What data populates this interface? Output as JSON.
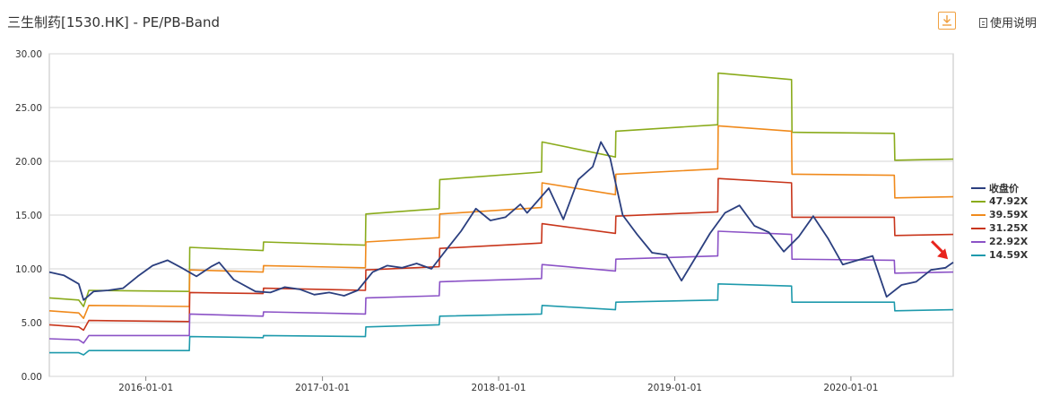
{
  "header": {
    "title": "三生制药[1530.HK] - PE/PB-Band",
    "help_label": "使用说明"
  },
  "colors": {
    "close": "#2b3f7f",
    "band_1": "#8aab1b",
    "band_2": "#f08a1c",
    "band_3": "#c8351b",
    "band_4": "#8b52c6",
    "band_5": "#1e9aac",
    "marker": "#e8231c",
    "grid": "#d4d4d4",
    "download": "#f0a040"
  },
  "chart_data": {
    "type": "line",
    "ylim": [
      0,
      30
    ],
    "yticks": [
      "0.00",
      "5.00",
      "10.00",
      "15.00",
      "20.00",
      "25.00",
      "30.00"
    ],
    "xticks": [
      "2016-01-01",
      "2017-01-01",
      "2018-01-01",
      "2019-01-01",
      "2020-01-01"
    ],
    "x_range": [
      "2015-06-15",
      "2020-07-31"
    ],
    "grid": true,
    "legend_position": "right",
    "series": [
      {
        "name": "收盘价",
        "points": [
          [
            "2015-06-15",
            9.7
          ],
          [
            "2015-07-15",
            9.4
          ],
          [
            "2015-08-15",
            8.6
          ],
          [
            "2015-08-25",
            7.1
          ],
          [
            "2015-09-15",
            7.9
          ],
          [
            "2015-10-15",
            8.0
          ],
          [
            "2015-11-15",
            8.2
          ],
          [
            "2015-12-15",
            9.3
          ],
          [
            "2016-01-15",
            10.3
          ],
          [
            "2016-02-15",
            10.8
          ],
          [
            "2016-03-15",
            10.1
          ],
          [
            "2016-04-15",
            9.3
          ],
          [
            "2016-05-15",
            10.2
          ],
          [
            "2016-06-01",
            10.6
          ],
          [
            "2016-07-01",
            9.0
          ],
          [
            "2016-08-15",
            7.9
          ],
          [
            "2016-09-15",
            7.8
          ],
          [
            "2016-10-15",
            8.3
          ],
          [
            "2016-11-15",
            8.1
          ],
          [
            "2016-12-15",
            7.6
          ],
          [
            "2017-01-15",
            7.8
          ],
          [
            "2017-02-15",
            7.5
          ],
          [
            "2017-03-15",
            8.0
          ],
          [
            "2017-04-15",
            9.7
          ],
          [
            "2017-05-15",
            10.3
          ],
          [
            "2017-06-15",
            10.1
          ],
          [
            "2017-07-15",
            10.5
          ],
          [
            "2017-08-15",
            10.0
          ],
          [
            "2017-09-15",
            11.8
          ],
          [
            "2017-10-15",
            13.5
          ],
          [
            "2017-11-15",
            15.6
          ],
          [
            "2017-12-15",
            14.5
          ],
          [
            "2018-01-15",
            14.8
          ],
          [
            "2018-02-15",
            16.0
          ],
          [
            "2018-03-01",
            15.2
          ],
          [
            "2018-04-15",
            17.5
          ],
          [
            "2018-05-15",
            14.6
          ],
          [
            "2018-06-15",
            18.3
          ],
          [
            "2018-07-15",
            19.5
          ],
          [
            "2018-08-01",
            21.8
          ],
          [
            "2018-08-20",
            20.3
          ],
          [
            "2018-09-15",
            15.0
          ],
          [
            "2018-10-15",
            13.2
          ],
          [
            "2018-11-15",
            11.5
          ],
          [
            "2018-12-15",
            11.3
          ],
          [
            "2019-01-15",
            8.9
          ],
          [
            "2019-02-15",
            11.2
          ],
          [
            "2019-03-15",
            13.3
          ],
          [
            "2019-04-15",
            15.2
          ],
          [
            "2019-05-15",
            15.9
          ],
          [
            "2019-06-15",
            14.0
          ],
          [
            "2019-07-15",
            13.4
          ],
          [
            "2019-08-15",
            11.6
          ],
          [
            "2019-09-15",
            13.0
          ],
          [
            "2019-10-15",
            14.9
          ],
          [
            "2019-11-15",
            12.8
          ],
          [
            "2019-12-15",
            10.4
          ],
          [
            "2020-01-15",
            10.8
          ],
          [
            "2020-02-15",
            11.2
          ],
          [
            "2020-03-15",
            7.4
          ],
          [
            "2020-04-15",
            8.5
          ],
          [
            "2020-05-15",
            8.8
          ],
          [
            "2020-06-15",
            9.9
          ],
          [
            "2020-07-15",
            10.1
          ],
          [
            "2020-07-31",
            10.6
          ]
        ]
      },
      {
        "name": "47.92X",
        "points": [
          [
            "2015-06-15",
            7.3
          ],
          [
            "2015-08-15",
            7.1
          ],
          [
            "2015-08-25",
            6.5
          ],
          [
            "2015-09-05",
            8.0
          ],
          [
            "2016-03-31",
            7.9
          ],
          [
            "2016-04-01",
            12.0
          ],
          [
            "2016-08-31",
            11.7
          ],
          [
            "2016-09-01",
            12.5
          ],
          [
            "2017-03-31",
            12.2
          ],
          [
            "2017-04-01",
            15.1
          ],
          [
            "2017-08-31",
            15.6
          ],
          [
            "2017-09-01",
            18.3
          ],
          [
            "2018-03-31",
            19.0
          ],
          [
            "2018-04-01",
            21.8
          ],
          [
            "2018-08-31",
            20.4
          ],
          [
            "2018-09-01",
            22.8
          ],
          [
            "2019-03-31",
            23.4
          ],
          [
            "2019-04-01",
            28.2
          ],
          [
            "2019-08-31",
            27.6
          ],
          [
            "2019-09-01",
            22.7
          ],
          [
            "2020-03-31",
            22.6
          ],
          [
            "2020-04-01",
            20.1
          ],
          [
            "2020-07-31",
            20.2
          ]
        ]
      },
      {
        "name": "39.59X",
        "points": [
          [
            "2015-06-15",
            6.1
          ],
          [
            "2015-08-15",
            5.9
          ],
          [
            "2015-08-25",
            5.4
          ],
          [
            "2015-09-05",
            6.6
          ],
          [
            "2016-03-31",
            6.5
          ],
          [
            "2016-04-01",
            9.9
          ],
          [
            "2016-08-31",
            9.7
          ],
          [
            "2016-09-01",
            10.3
          ],
          [
            "2017-03-31",
            10.1
          ],
          [
            "2017-04-01",
            12.5
          ],
          [
            "2017-08-31",
            12.9
          ],
          [
            "2017-09-01",
            15.1
          ],
          [
            "2018-03-31",
            15.7
          ],
          [
            "2018-04-01",
            18.0
          ],
          [
            "2018-08-31",
            16.9
          ],
          [
            "2018-09-01",
            18.8
          ],
          [
            "2019-03-31",
            19.3
          ],
          [
            "2019-04-01",
            23.3
          ],
          [
            "2019-08-31",
            22.8
          ],
          [
            "2019-09-01",
            18.8
          ],
          [
            "2020-03-31",
            18.7
          ],
          [
            "2020-04-01",
            16.6
          ],
          [
            "2020-07-31",
            16.7
          ]
        ]
      },
      {
        "name": "31.25X",
        "points": [
          [
            "2015-06-15",
            4.8
          ],
          [
            "2015-08-15",
            4.6
          ],
          [
            "2015-08-25",
            4.3
          ],
          [
            "2015-09-05",
            5.2
          ],
          [
            "2016-03-31",
            5.1
          ],
          [
            "2016-04-01",
            7.8
          ],
          [
            "2016-08-31",
            7.7
          ],
          [
            "2016-09-01",
            8.2
          ],
          [
            "2017-03-31",
            8.0
          ],
          [
            "2017-04-01",
            9.9
          ],
          [
            "2017-08-31",
            10.2
          ],
          [
            "2017-09-01",
            11.9
          ],
          [
            "2018-03-31",
            12.4
          ],
          [
            "2018-04-01",
            14.2
          ],
          [
            "2018-08-31",
            13.3
          ],
          [
            "2018-09-01",
            14.9
          ],
          [
            "2019-03-31",
            15.3
          ],
          [
            "2019-04-01",
            18.4
          ],
          [
            "2019-08-31",
            18.0
          ],
          [
            "2019-09-01",
            14.8
          ],
          [
            "2020-03-31",
            14.8
          ],
          [
            "2020-04-01",
            13.1
          ],
          [
            "2020-07-31",
            13.2
          ]
        ]
      },
      {
        "name": "22.92X",
        "points": [
          [
            "2015-06-15",
            3.5
          ],
          [
            "2015-08-15",
            3.4
          ],
          [
            "2015-08-25",
            3.1
          ],
          [
            "2015-09-05",
            3.8
          ],
          [
            "2016-03-31",
            3.8
          ],
          [
            "2016-04-01",
            5.8
          ],
          [
            "2016-08-31",
            5.6
          ],
          [
            "2016-09-01",
            6.0
          ],
          [
            "2017-03-31",
            5.8
          ],
          [
            "2017-04-01",
            7.3
          ],
          [
            "2017-08-31",
            7.5
          ],
          [
            "2017-09-01",
            8.8
          ],
          [
            "2018-03-31",
            9.1
          ],
          [
            "2018-04-01",
            10.4
          ],
          [
            "2018-08-31",
            9.8
          ],
          [
            "2018-09-01",
            10.9
          ],
          [
            "2019-03-31",
            11.2
          ],
          [
            "2019-04-01",
            13.5
          ],
          [
            "2019-08-31",
            13.2
          ],
          [
            "2019-09-01",
            10.9
          ],
          [
            "2020-03-31",
            10.8
          ],
          [
            "2020-04-01",
            9.6
          ],
          [
            "2020-07-31",
            9.7
          ]
        ]
      },
      {
        "name": "14.59X",
        "points": [
          [
            "2015-06-15",
            2.2
          ],
          [
            "2015-08-15",
            2.2
          ],
          [
            "2015-08-25",
            2.0
          ],
          [
            "2015-09-05",
            2.4
          ],
          [
            "2016-03-31",
            2.4
          ],
          [
            "2016-04-01",
            3.7
          ],
          [
            "2016-08-31",
            3.6
          ],
          [
            "2016-09-01",
            3.8
          ],
          [
            "2017-03-31",
            3.7
          ],
          [
            "2017-04-01",
            4.6
          ],
          [
            "2017-08-31",
            4.8
          ],
          [
            "2017-09-01",
            5.6
          ],
          [
            "2018-03-31",
            5.8
          ],
          [
            "2018-04-01",
            6.6
          ],
          [
            "2018-08-31",
            6.2
          ],
          [
            "2018-09-01",
            6.9
          ],
          [
            "2019-03-31",
            7.1
          ],
          [
            "2019-04-01",
            8.6
          ],
          [
            "2019-08-31",
            8.4
          ],
          [
            "2019-09-01",
            6.9
          ],
          [
            "2020-03-31",
            6.9
          ],
          [
            "2020-04-01",
            6.1
          ],
          [
            "2020-07-31",
            6.2
          ]
        ]
      }
    ],
    "annotation": {
      "type": "arrow",
      "at": [
        "2020-07-20",
        10.9
      ]
    }
  }
}
